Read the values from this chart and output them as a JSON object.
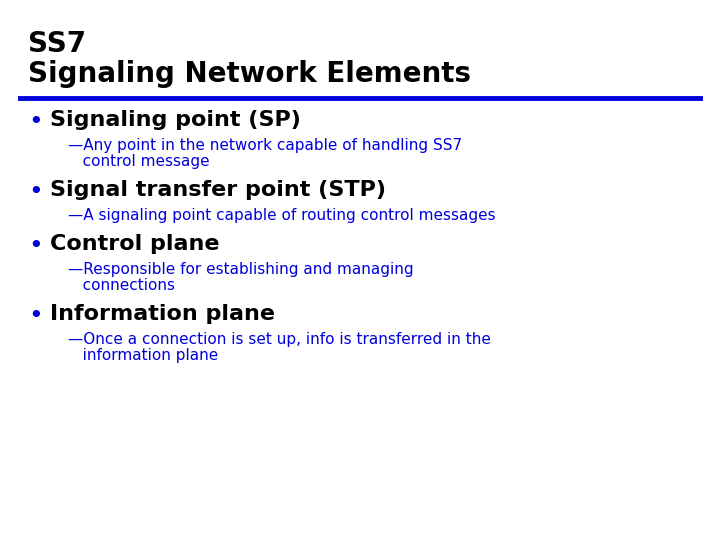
{
  "title_line1": "SS7",
  "title_line2": "Signaling Network Elements",
  "title_color": "#000000",
  "divider_color": "#0000dd",
  "background_color": "#ffffff",
  "title_fs": 20,
  "bullet_fs": 16,
  "sub_fs": 11,
  "bullet_color": "#000000",
  "sub_color": "#0000dd",
  "bullet_dot_color": "#0000dd",
  "items": [
    {
      "heading": "Signaling point (SP)",
      "sub": [
        "—Any point in the network capable of handling SS7",
        "   control message"
      ]
    },
    {
      "heading": "Signal transfer point (STP)",
      "sub": [
        "—A signaling point capable of routing control messages"
      ]
    },
    {
      "heading": "Control plane",
      "sub": [
        "—Responsible for establishing and managing",
        "   connections"
      ]
    },
    {
      "heading": "Information plane",
      "sub": [
        "—Once a connection is set up, info is transferred in the",
        "   information plane"
      ]
    }
  ]
}
